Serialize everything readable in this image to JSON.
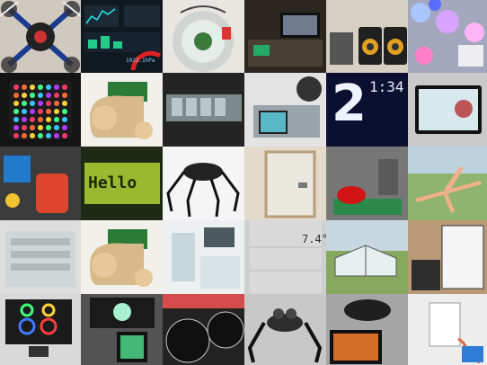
{
  "collage": {
    "rows": 5,
    "cols": 6,
    "texts": {
      "clock_big_digit": "2",
      "clock_time": "1:34",
      "lcd_text": "Hello",
      "weather_temp": "7.4°",
      "dashboard_value": "1022.1hPa"
    }
  }
}
